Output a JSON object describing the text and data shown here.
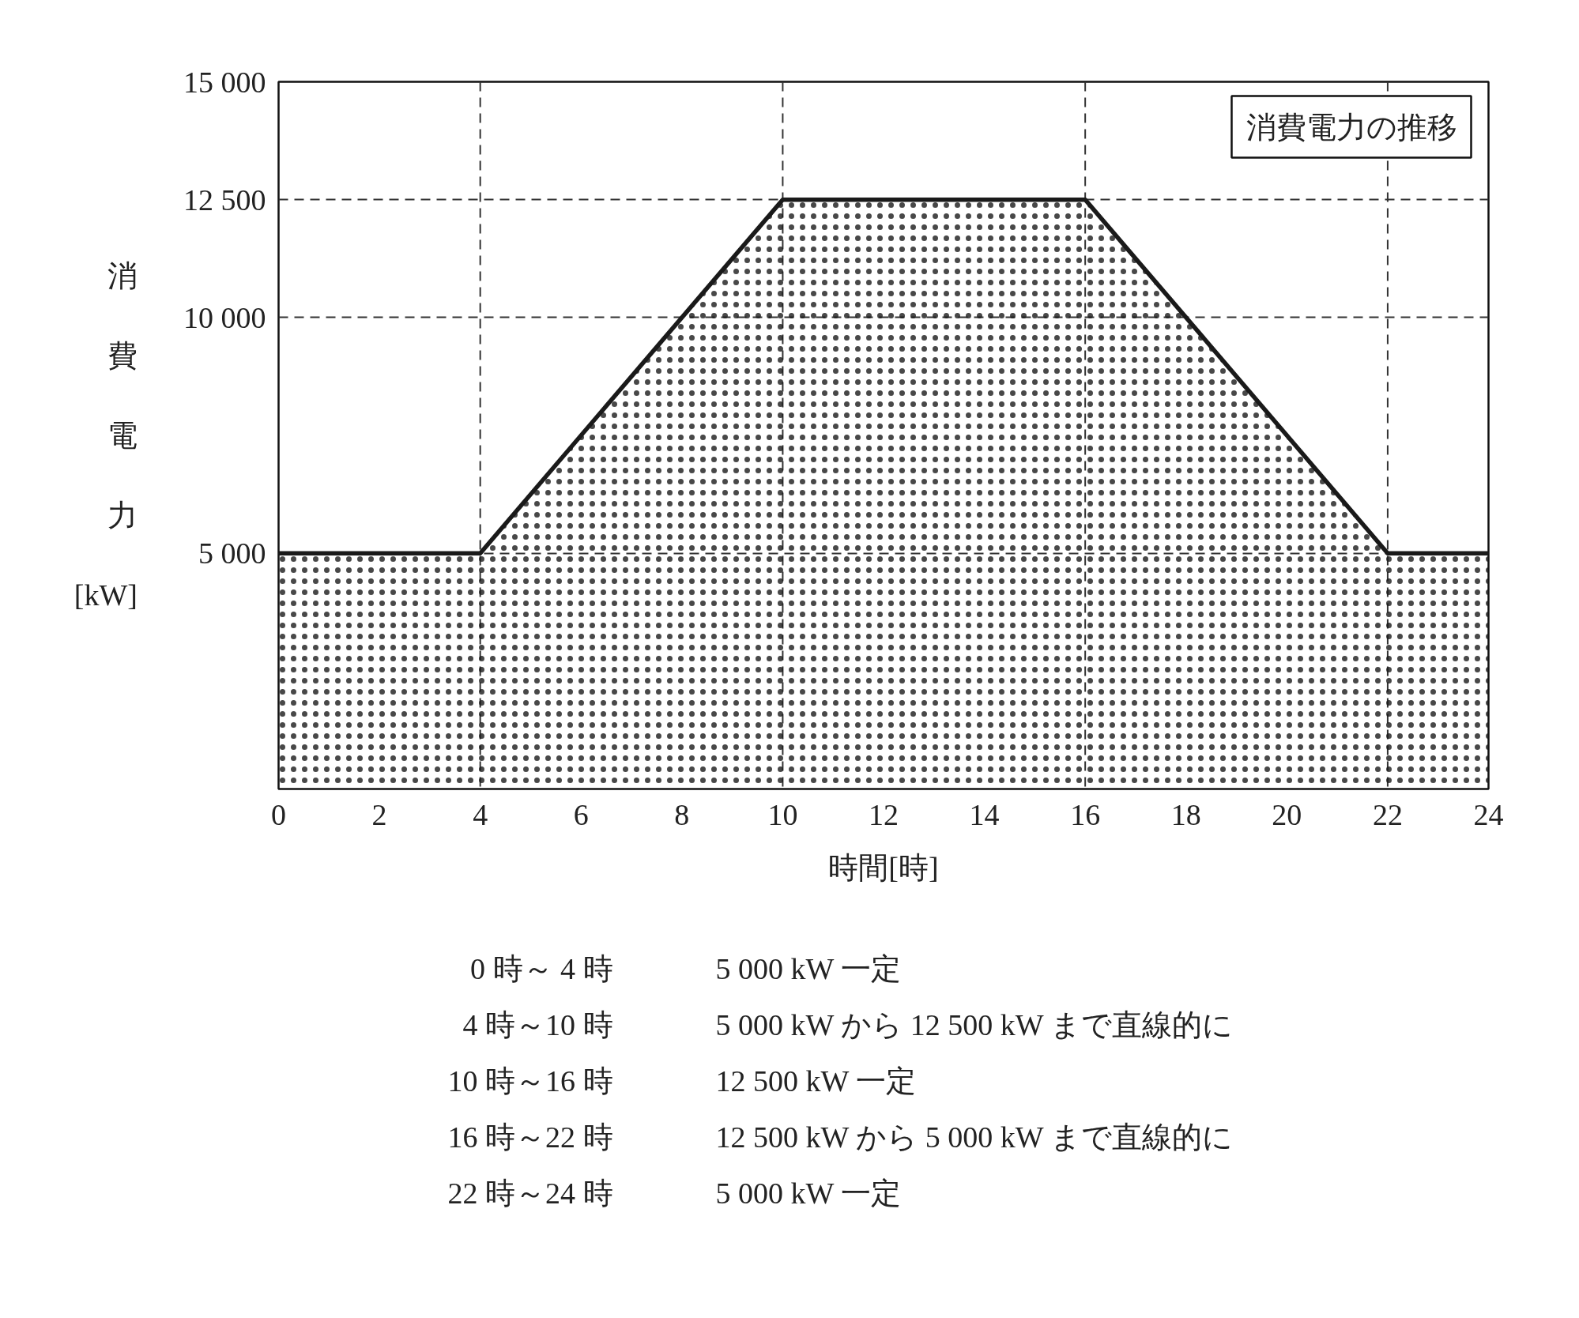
{
  "chart_data": {
    "type": "area",
    "title": "消費電力の推移",
    "xlabel": "時間[時]",
    "ylabel": "消費電力[kW]",
    "x": [
      0,
      4,
      10,
      16,
      22,
      24
    ],
    "series": [
      {
        "color": "#1a1a1a",
        "values": [
          5000,
          5000,
          12500,
          12500,
          5000,
          5000
        ]
      }
    ],
    "xlim": [
      0,
      24
    ],
    "ylim": [
      0,
      15000
    ],
    "xticks": [
      0,
      2,
      4,
      6,
      8,
      10,
      12,
      14,
      16,
      18,
      20,
      22,
      24
    ],
    "yticks": [
      {
        "value": 5000,
        "label": "5 000"
      },
      {
        "value": 10000,
        "label": "10 000"
      },
      {
        "value": 12500,
        "label": "12 500"
      },
      {
        "value": 15000,
        "label": "15 000"
      }
    ],
    "grid": "y",
    "line_style": "solid",
    "ref_lines": [
      {
        "axis": "x",
        "value": 4,
        "color": "#333333",
        "line_style": "dashed"
      },
      {
        "axis": "x",
        "value": 10,
        "color": "#333333",
        "line_style": "dashed"
      },
      {
        "axis": "x",
        "value": 16,
        "color": "#333333",
        "line_style": "dashed"
      },
      {
        "axis": "x",
        "value": 22,
        "color": "#333333",
        "line_style": "dashed"
      }
    ],
    "annotations": [
      "0 時～ 4 時",
      "5 000 kW 一定",
      "4 時～10 時",
      "5 000 kW から 12 500 kW まで直線的に",
      "10 時～16 時",
      "12 500 kW 一定",
      "16 時～22 時",
      "12 500 kW から 5 000 kW まで直線的に",
      "22 時～24 時",
      "5 000 kW 一定"
    ]
  }
}
